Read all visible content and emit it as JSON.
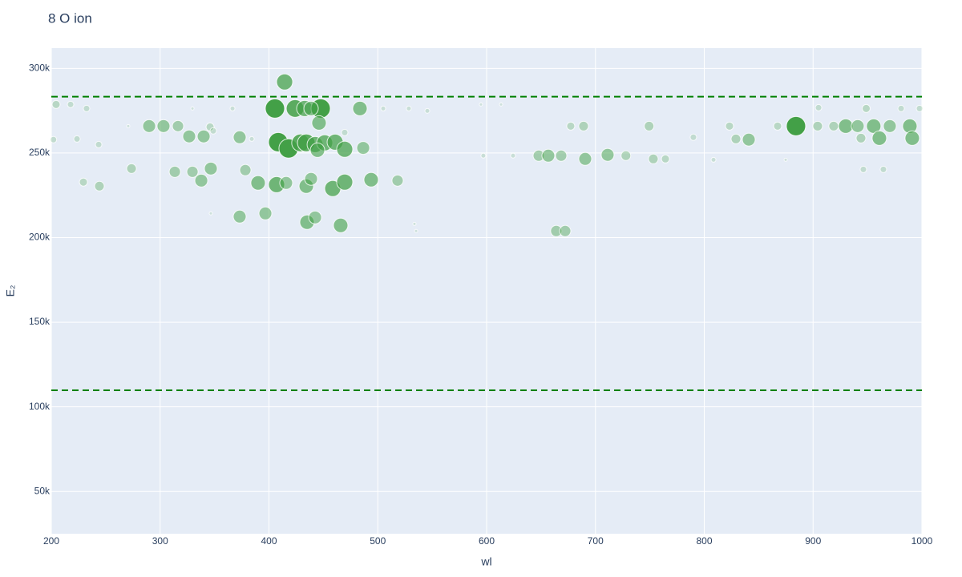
{
  "chart_data": {
    "type": "scatter",
    "title": "8 O ion",
    "x_label": "wl",
    "y_label": "E₂",
    "color": "#43a047",
    "line_color": "#008000",
    "grid": true,
    "xlim": [
      200,
      1000
    ],
    "ylim": [
      25000,
      312000
    ],
    "xticks": [
      200,
      300,
      400,
      500,
      600,
      700,
      800,
      900,
      1000
    ],
    "yticks": [
      {
        "value": 50000,
        "label": "50k"
      },
      {
        "value": 100000,
        "label": "100k"
      },
      {
        "value": 150000,
        "label": "150k"
      },
      {
        "value": 200000,
        "label": "200k"
      },
      {
        "value": 250000,
        "label": "250k"
      },
      {
        "value": 300000,
        "label": "300k"
      }
    ],
    "hlines": [
      283300,
      109800
    ],
    "x": [
      414.4,
      405.5,
      424,
      432.8,
      447.5,
      438.7,
      483.6,
      446,
      408.5,
      418,
      429,
      434.3,
      442.4,
      451.2,
      460.8,
      469.6,
      486.6,
      444.6,
      289.9,
      303.1,
      316.4,
      326.7,
      340,
      345.9,
      373.1,
      313.5,
      329.7,
      346.6,
      337.8,
      378.3,
      390,
      407,
      415.8,
      434.3,
      438.7,
      458.6,
      469.6,
      493.9,
      518.2,
      373.1,
      396.7,
      435,
      442.4,
      465.9,
      273.7,
      244.2,
      229.5,
      204.4,
      217.7,
      232.4,
      223.6,
      202,
      243.5,
      647.9,
      656.7,
      668.5,
      664,
      672.2,
      690.6,
      711.2,
      728,
      749.3,
      677.3,
      689.1,
      753.2,
      764.3,
      823.2,
      829.1,
      840.9,
      867.4,
      884.3,
      904.2,
      918.9,
      930,
      941,
      955.7,
      960.9,
      970.5,
      988.9,
      991.1,
      944,
      905,
      948.8,
      980.9,
      997.8,
      946.2,
      964.6,
      790,
      808.5,
      874.8,
      597,
      624.3,
      594.8,
      613.3,
      528.5,
      505,
      545.5,
      533.7,
      535.2,
      346.6,
      270.7,
      329.7,
      366.5,
      384.2,
      348.8,
      469.6
    ],
    "y": [
      292000,
      276300,
      276300,
      276300,
      276300,
      276300,
      276300,
      267800,
      256400,
      252700,
      256000,
      256000,
      255000,
      256000,
      256400,
      252200,
      253000,
      251700,
      265900,
      265900,
      265900,
      259800,
      259800,
      265400,
      259300,
      238900,
      238900,
      240800,
      233700,
      239900,
      232300,
      231300,
      232300,
      230400,
      234700,
      229000,
      232800,
      234200,
      233700,
      212400,
      214300,
      209100,
      211900,
      207200,
      240800,
      230400,
      232800,
      278700,
      278700,
      276300,
      258300,
      257900,
      255000,
      248400,
      248400,
      248400,
      203900,
      203900,
      246500,
      248900,
      248400,
      265900,
      265900,
      265900,
      246500,
      246500,
      265900,
      258300,
      257900,
      265900,
      265900,
      265900,
      265900,
      265900,
      265900,
      265900,
      258800,
      265900,
      265900,
      258800,
      258800,
      276800,
      276300,
      276300,
      276300,
      240300,
      240300,
      259300,
      246000,
      246000,
      248400,
      248400,
      278700,
      278700,
      276300,
      276300,
      274900,
      208100,
      203900,
      214300,
      265900,
      276300,
      276300,
      258300,
      263100,
      262100
    ],
    "sizes": [
      20,
      24,
      22,
      20,
      24,
      18,
      18,
      18,
      24,
      24,
      22,
      22,
      20,
      20,
      20,
      20,
      16,
      18,
      16,
      16,
      14,
      16,
      16,
      10,
      16,
      14,
      14,
      16,
      16,
      14,
      18,
      20,
      16,
      18,
      16,
      20,
      20,
      18,
      14,
      16,
      16,
      18,
      16,
      18,
      12,
      12,
      10,
      10,
      8,
      8,
      8,
      8,
      8,
      14,
      16,
      14,
      14,
      14,
      16,
      16,
      12,
      12,
      10,
      12,
      12,
      10,
      10,
      12,
      16,
      10,
      24,
      12,
      12,
      18,
      16,
      18,
      18,
      16,
      18,
      18,
      12,
      8,
      10,
      8,
      8,
      8,
      8,
      8,
      6,
      4,
      6,
      6,
      4,
      4,
      6,
      6,
      6,
      4,
      4,
      4,
      4,
      4,
      6,
      6,
      8,
      8
    ]
  }
}
